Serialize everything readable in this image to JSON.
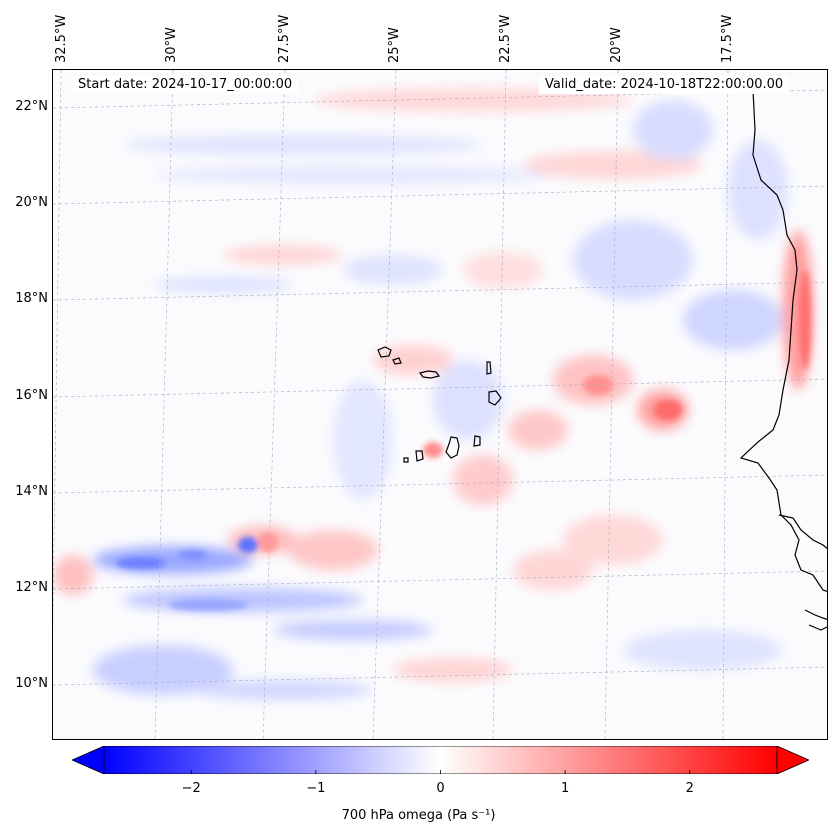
{
  "map": {
    "start_date": "Start date: 2024-10-17_00:00:00",
    "valid_date": "Valid_date: 2024-10-18T22:00:00.00",
    "lat_labels": [
      "22°N",
      "20°N",
      "18°N",
      "16°N",
      "14°N",
      "12°N",
      "10°N"
    ],
    "lon_labels": [
      "32.5°W",
      "30°W",
      "27.5°W",
      "25°W",
      "22.5°W",
      "20°W",
      "17.5°W"
    ],
    "field": "700 hPa omega",
    "units": "Pa s⁻¹",
    "colorbar": {
      "label": "700 hPa omega (Pa s⁻¹)",
      "vmin": -2.7,
      "vmax": 2.7,
      "ticks": [
        "−2",
        "−1",
        "0",
        "1",
        "2"
      ],
      "tick_values": [
        -2,
        -1,
        0,
        1,
        2
      ],
      "colors": {
        "negative": "#0000ff",
        "zero": "#ffffff",
        "positive": "#ff0000"
      }
    },
    "coast_color": "#000000",
    "grid_color": "#b0b0c8"
  }
}
